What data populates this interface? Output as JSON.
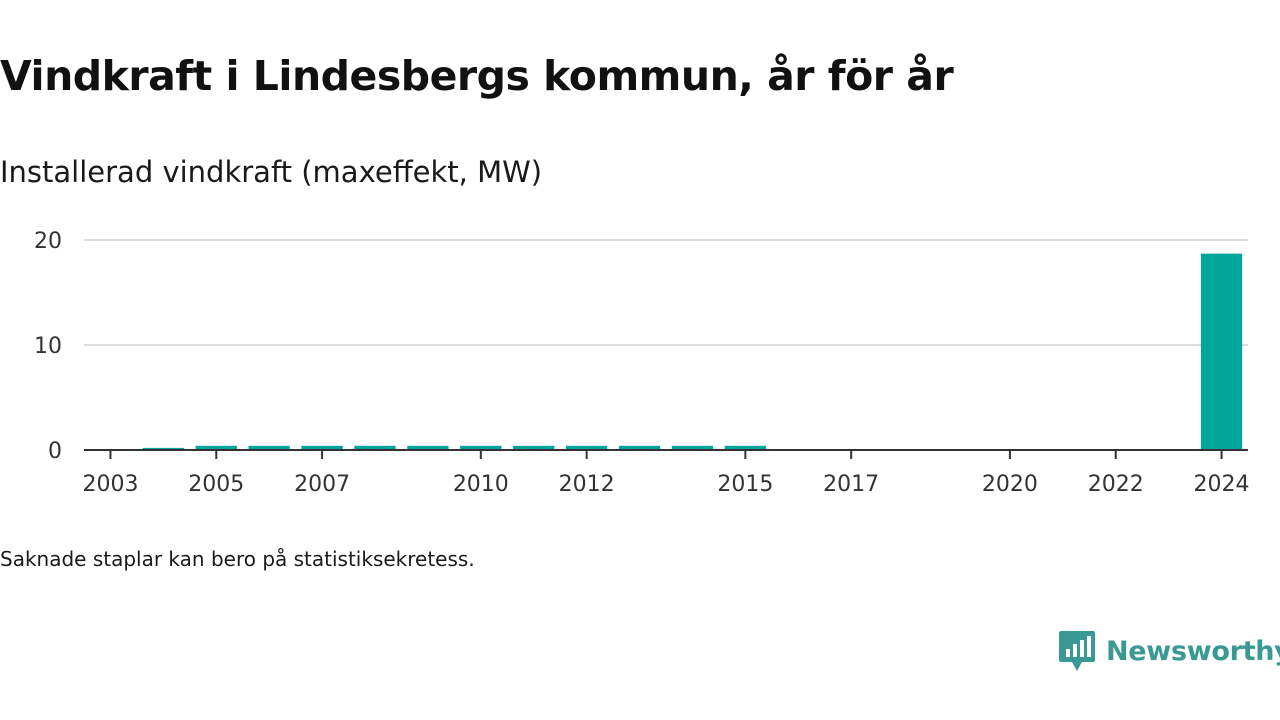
{
  "chart_data": {
    "type": "bar",
    "title": "Vindkraft i Lindesbergs kommun, år för år",
    "subtitle": "Installerad vindkraft (maxeffekt, MW)",
    "xlabel": "",
    "ylabel": "",
    "categories": [
      "2003",
      "2004",
      "2005",
      "2006",
      "2007",
      "2008",
      "2009",
      "2010",
      "2011",
      "2012",
      "2013",
      "2014",
      "2015",
      "2016",
      "2017",
      "2018",
      "2019",
      "2020",
      "2021",
      "2022",
      "2023",
      "2024"
    ],
    "values": [
      0,
      0.2,
      0.4,
      0.4,
      0.4,
      0.4,
      0.4,
      0.4,
      0.4,
      0.4,
      0.4,
      0.4,
      0.4,
      0,
      0,
      0,
      0,
      0,
      0,
      0,
      0,
      18.7
    ],
    "x_tick_labels": [
      "2003",
      "2005",
      "2007",
      "2010",
      "2012",
      "2015",
      "2017",
      "2020",
      "2022",
      "2024"
    ],
    "y_ticks": [
      0,
      10,
      20
    ],
    "ylim": [
      0,
      20
    ],
    "grid": true,
    "legend": "none",
    "bar_color": "#00a59c",
    "note": "Saknade staplar kan bero på statistiksekretess."
  },
  "brand": {
    "name": "Newsworthy",
    "logo_icon": "newsworthy-logo-icon",
    "color": "#3a9a93"
  }
}
